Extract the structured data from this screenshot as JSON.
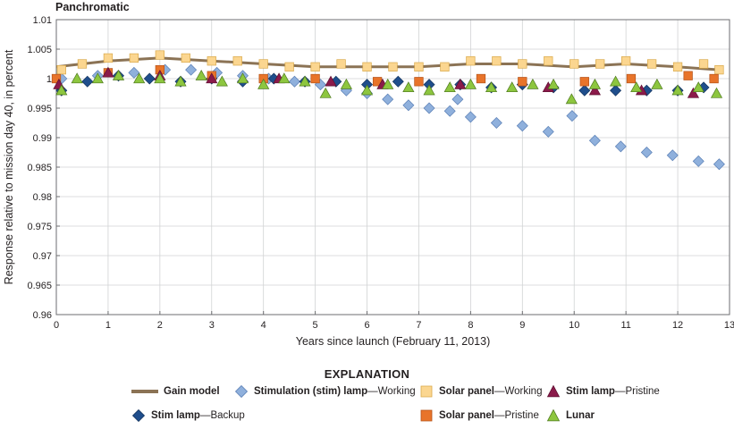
{
  "chart_data": {
    "type": "scatter",
    "title": "Panchromatic",
    "xlabel": "Years since launch (February 11, 2013)",
    "ylabel": "Response relative to mission day 40, in percent",
    "xlim": [
      0,
      13
    ],
    "ylim": [
      0.96,
      1.01
    ],
    "xticks": [
      "0",
      "1",
      "2",
      "3",
      "4",
      "5",
      "6",
      "7",
      "8",
      "9",
      "10",
      "11",
      "12",
      "13"
    ],
    "yticks": [
      "0.96",
      "0.965",
      "0.97",
      "0.975",
      "0.98",
      "0.985",
      "0.99",
      "0.995",
      "1",
      "1.005",
      "1.01"
    ],
    "grid": true,
    "legend_title": "EXPLANATION",
    "legend_position": "bottom",
    "series": [
      {
        "name": "Gain model",
        "label_bold": "Gain model",
        "label_rest": "",
        "type": "line",
        "color": "#8b7355",
        "x": [
          0,
          1,
          2,
          3,
          4,
          5,
          6,
          7,
          8,
          9,
          10,
          11,
          12,
          12.8
        ],
        "y": [
          1.002,
          1.003,
          1.0035,
          1.003,
          1.0025,
          1.002,
          1.002,
          1.002,
          1.0025,
          1.0025,
          1.002,
          1.0025,
          1.002,
          1.0015
        ]
      },
      {
        "name": "Stimulation (stim) lamp—Working",
        "label_bold": "Stimulation (stim) lamp",
        "label_rest": "—Working",
        "marker": "diamond",
        "color": "#8fb0dc",
        "stroke": "#5a7fb5",
        "x": [
          0.1,
          0.8,
          1.5,
          2.1,
          2.6,
          3.1,
          3.6,
          4.1,
          4.6,
          5.1,
          5.6,
          6.0,
          6.4,
          6.8,
          7.2,
          7.6,
          7.75,
          8.0,
          8.5,
          9.0,
          9.5,
          9.96,
          10.4,
          10.9,
          11.4,
          11.9,
          12.4,
          12.8
        ],
        "y": [
          1.0,
          1.0005,
          1.001,
          1.0015,
          1.0015,
          1.001,
          1.0005,
          1.0,
          0.9995,
          0.999,
          0.998,
          0.9975,
          0.9965,
          0.9955,
          0.995,
          0.9945,
          0.9965,
          0.9935,
          0.9925,
          0.992,
          0.991,
          0.9937,
          0.9895,
          0.9885,
          0.9875,
          0.987,
          0.986,
          0.9855
        ]
      },
      {
        "name": "Stim lamp—Backup",
        "label_bold": "Stim lamp",
        "label_rest": "—Backup",
        "marker": "diamond",
        "color": "#1f4e8c",
        "stroke": "#14345e",
        "x": [
          0.1,
          0.6,
          1.2,
          1.8,
          2.4,
          3.0,
          3.6,
          4.2,
          4.8,
          5.4,
          6.0,
          6.6,
          7.2,
          7.8,
          8.4,
          9.0,
          9.6,
          10.2,
          10.8,
          11.4,
          12.0,
          12.5
        ],
        "y": [
          0.998,
          0.9995,
          1.0005,
          1.0,
          0.9995,
          1.0,
          0.9995,
          1.0,
          0.9995,
          0.9995,
          0.999,
          0.9995,
          0.999,
          0.999,
          0.9985,
          0.999,
          0.9985,
          0.998,
          0.998,
          0.998,
          0.998,
          0.9985
        ]
      },
      {
        "name": "Solar panel—Working",
        "label_bold": "Solar panel",
        "label_rest": "—Working",
        "marker": "square",
        "color": "#fbd690",
        "stroke": "#d9a94a",
        "x": [
          0.1,
          0.5,
          1.0,
          1.5,
          2.0,
          2.5,
          3.0,
          3.5,
          4.0,
          4.5,
          5.0,
          5.5,
          6.0,
          6.5,
          7.0,
          7.5,
          8.0,
          8.5,
          9.0,
          9.5,
          10.0,
          10.5,
          11.0,
          11.5,
          12.0,
          12.5,
          12.8
        ],
        "y": [
          1.0015,
          1.0025,
          1.0035,
          1.0035,
          1.004,
          1.0035,
          1.003,
          1.003,
          1.0025,
          1.002,
          1.002,
          1.0025,
          1.002,
          1.002,
          1.002,
          1.002,
          1.003,
          1.003,
          1.0025,
          1.003,
          1.0025,
          1.0025,
          1.003,
          1.0025,
          1.002,
          1.0025,
          1.0015
        ]
      },
      {
        "name": "Solar panel—Pristine",
        "label_bold": "Solar panel",
        "label_rest": "—Pristine",
        "marker": "square",
        "color": "#e8742a",
        "stroke": "#b5531a",
        "x": [
          0.0,
          1.0,
          2.0,
          3.0,
          4.0,
          5.0,
          6.2,
          7.0,
          8.2,
          9.0,
          10.2,
          11.1,
          12.2,
          12.7
        ],
        "y": [
          1.0,
          1.001,
          1.0015,
          1.0005,
          1.0,
          1.0,
          0.9995,
          0.9995,
          1.0,
          0.9995,
          0.9995,
          1.0,
          1.0005,
          1.0
        ]
      },
      {
        "name": "Stim lamp—Pristine",
        "label_bold": "Stim lamp",
        "label_rest": "—Pristine",
        "marker": "triangle",
        "color": "#8b1a4a",
        "stroke": "#5e1031",
        "x": [
          0.05,
          1.0,
          2.0,
          3.0,
          4.3,
          5.3,
          6.3,
          7.8,
          9.5,
          10.4,
          11.3,
          12.3
        ],
        "y": [
          0.999,
          1.001,
          1.0005,
          1.0,
          1.0,
          0.9995,
          0.999,
          0.999,
          0.9985,
          0.998,
          0.998,
          0.9975
        ]
      },
      {
        "name": "Lunar",
        "label_bold": "Lunar",
        "label_rest": "",
        "marker": "triangle",
        "color": "#8dc63f",
        "stroke": "#4f7a1f",
        "x": [
          0.1,
          0.4,
          0.8,
          1.2,
          1.6,
          2.0,
          2.4,
          2.8,
          3.2,
          3.6,
          4.0,
          4.4,
          4.8,
          5.2,
          5.6,
          6.0,
          6.4,
          6.8,
          7.2,
          7.6,
          8.0,
          8.4,
          8.8,
          9.2,
          9.6,
          9.95,
          10.4,
          10.8,
          11.2,
          11.6,
          12.0,
          12.4,
          12.75
        ],
        "y": [
          0.998,
          1.0,
          1.0,
          1.0005,
          1.0,
          1.0,
          0.9995,
          1.0005,
          0.9995,
          1.0,
          0.999,
          1.0,
          0.9995,
          0.9975,
          0.999,
          0.998,
          0.999,
          0.9985,
          0.998,
          0.9985,
          0.999,
          0.9985,
          0.9985,
          0.999,
          0.999,
          0.9965,
          0.999,
          0.9995,
          0.9985,
          0.999,
          0.998,
          0.9985,
          0.9975
        ]
      }
    ]
  }
}
